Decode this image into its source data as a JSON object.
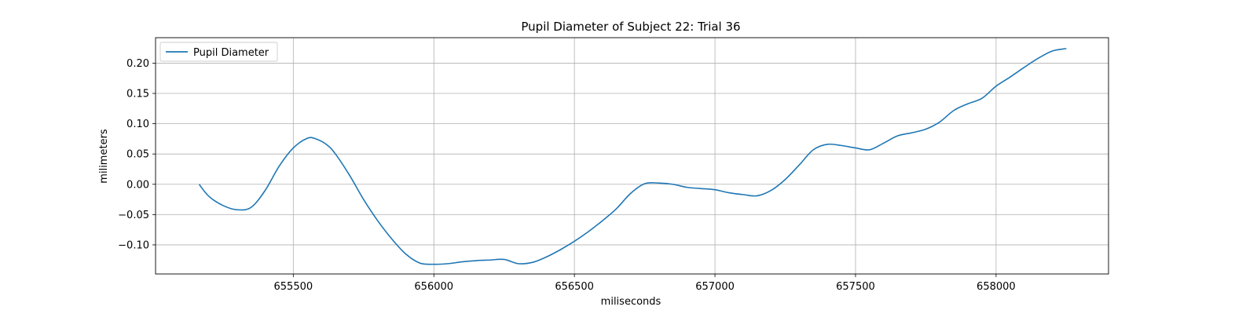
{
  "chart_data": {
    "type": "line",
    "title": "Pupil Diameter of Subject 22: Trial 36",
    "xlabel": "miliseconds",
    "ylabel": "milimeters",
    "xlim": [
      655010,
      658400
    ],
    "ylim": [
      -0.148,
      0.242
    ],
    "xticks": [
      655500,
      656000,
      656500,
      657000,
      657500,
      658000
    ],
    "yticks": [
      -0.1,
      -0.05,
      0.0,
      0.05,
      0.1,
      0.15,
      0.2
    ],
    "xtick_labels": [
      "655500",
      "656000",
      "656500",
      "657000",
      "657500",
      "658000"
    ],
    "ytick_labels": [
      "−0.10",
      "−0.05",
      "0.00",
      "0.05",
      "0.10",
      "0.15",
      "0.20"
    ],
    "grid": true,
    "legend_position": "top-left",
    "color": "#1f77b4",
    "series": [
      {
        "name": "Pupil Diameter",
        "x": [
          655165,
          655200,
          655250,
          655300,
          655350,
          655400,
          655450,
          655500,
          655550,
          655580,
          655620,
          655650,
          655700,
          655750,
          655800,
          655850,
          655900,
          655950,
          656000,
          656050,
          656100,
          656150,
          656200,
          656250,
          656300,
          656350,
          656400,
          656450,
          656500,
          656550,
          656600,
          656650,
          656700,
          656750,
          656800,
          656850,
          656900,
          656950,
          657000,
          657050,
          657100,
          657150,
          657200,
          657250,
          657300,
          657350,
          657400,
          657450,
          657500,
          657550,
          657600,
          657650,
          657700,
          657750,
          657800,
          657850,
          657900,
          657950,
          658000,
          658050,
          658100,
          658150,
          658200,
          658250
        ],
        "y": [
          0.0,
          -0.02,
          -0.035,
          -0.042,
          -0.038,
          -0.01,
          0.03,
          0.06,
          0.076,
          0.075,
          0.065,
          0.05,
          0.015,
          -0.025,
          -0.06,
          -0.09,
          -0.115,
          -0.13,
          -0.132,
          -0.131,
          -0.128,
          -0.126,
          -0.125,
          -0.124,
          -0.131,
          -0.129,
          -0.12,
          -0.108,
          -0.094,
          -0.078,
          -0.06,
          -0.04,
          -0.015,
          0.001,
          0.002,
          0.0,
          -0.005,
          -0.007,
          -0.009,
          -0.014,
          -0.017,
          -0.019,
          -0.01,
          0.008,
          0.032,
          0.057,
          0.066,
          0.064,
          0.06,
          0.057,
          0.068,
          0.08,
          0.085,
          0.091,
          0.103,
          0.122,
          0.133,
          0.142,
          0.162,
          0.177,
          0.193,
          0.208,
          0.22,
          0.224
        ]
      }
    ]
  }
}
